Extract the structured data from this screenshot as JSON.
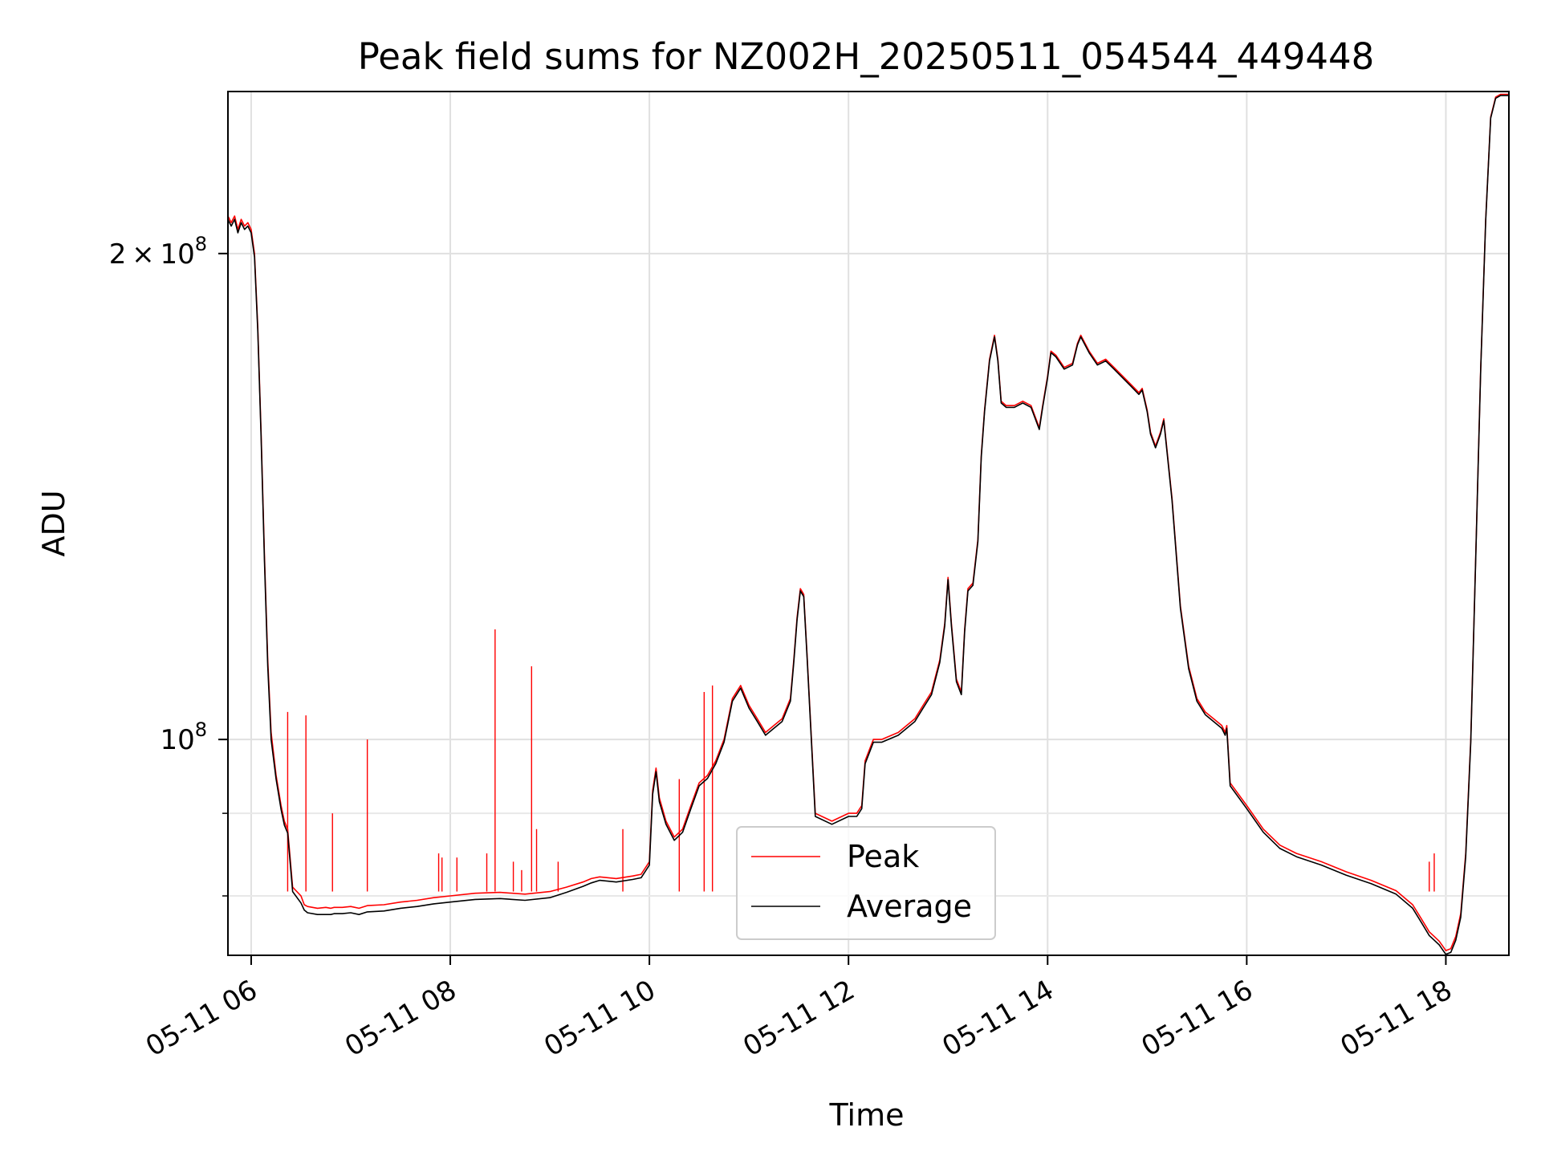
{
  "chart_data": {
    "type": "line",
    "title": "Peak field sums for NZ002H_20250511_054544_449448",
    "xlabel": "Time",
    "ylabel": "ADU",
    "y_scale": "log",
    "xlim": [
      "2025-05-11 05:46",
      "2025-05-11 18:38"
    ],
    "ylim": [
      73500000,
      252000000
    ],
    "grid": true,
    "legend_position": "bottom-center",
    "x_ticks": [
      {
        "value": "2025-05-11 06:00",
        "label": "05-11 06"
      },
      {
        "value": "2025-05-11 08:00",
        "label": "05-11 08"
      },
      {
        "value": "2025-05-11 10:00",
        "label": "05-11 10"
      },
      {
        "value": "2025-05-11 12:00",
        "label": "05-11 12"
      },
      {
        "value": "2025-05-11 14:00",
        "label": "05-11 14"
      },
      {
        "value": "2025-05-11 16:00",
        "label": "05-11 16"
      },
      {
        "value": "2025-05-11 18:00",
        "label": "05-11 18"
      }
    ],
    "y_ticks": [
      {
        "value": 200000000,
        "mantissa": "2",
        "times": "×",
        "base": "10",
        "exp": "8"
      },
      {
        "value": 100000000,
        "mantissa": "",
        "times": "",
        "base": "10",
        "exp": "8"
      }
    ],
    "y_minor_ticks": [
      90000000,
      80000000
    ],
    "series": [
      {
        "name": "Peak",
        "color": "#ff0000",
        "x": [
          "2025-05-11 05:46",
          "2025-05-11 05:48",
          "2025-05-11 05:50",
          "2025-05-11 05:52",
          "2025-05-11 05:54",
          "2025-05-11 05:56",
          "2025-05-11 05:58",
          "2025-05-11 06:00",
          "2025-05-11 06:02",
          "2025-05-11 06:04",
          "2025-05-11 06:06",
          "2025-05-11 06:08",
          "2025-05-11 06:10",
          "2025-05-11 06:12",
          "2025-05-11 06:15",
          "2025-05-11 06:18",
          "2025-05-11 06:20",
          "2025-05-11 06:22",
          "2025-05-11 06:25",
          "2025-05-11 06:30",
          "2025-05-11 06:32",
          "2025-05-11 06:34",
          "2025-05-11 06:40",
          "2025-05-11 06:45",
          "2025-05-11 06:48",
          "2025-05-11 06:50",
          "2025-05-11 06:55",
          "2025-05-11 07:00",
          "2025-05-11 07:05",
          "2025-05-11 07:10",
          "2025-05-11 07:20",
          "2025-05-11 07:30",
          "2025-05-11 07:40",
          "2025-05-11 07:50",
          "2025-05-11 08:00",
          "2025-05-11 08:15",
          "2025-05-11 08:30",
          "2025-05-11 08:45",
          "2025-05-11 09:00",
          "2025-05-11 09:10",
          "2025-05-11 09:20",
          "2025-05-11 09:25",
          "2025-05-11 09:30",
          "2025-05-11 09:40",
          "2025-05-11 09:50",
          "2025-05-11 09:55",
          "2025-05-11 10:00",
          "2025-05-11 10:02",
          "2025-05-11 10:04",
          "2025-05-11 10:06",
          "2025-05-11 10:10",
          "2025-05-11 10:15",
          "2025-05-11 10:20",
          "2025-05-11 10:25",
          "2025-05-11 10:30",
          "2025-05-11 10:35",
          "2025-05-11 10:40",
          "2025-05-11 10:45",
          "2025-05-11 10:50",
          "2025-05-11 10:55",
          "2025-05-11 11:00",
          "2025-05-11 11:05",
          "2025-05-11 11:10",
          "2025-05-11 11:15",
          "2025-05-11 11:20",
          "2025-05-11 11:25",
          "2025-05-11 11:27",
          "2025-05-11 11:29",
          "2025-05-11 11:31",
          "2025-05-11 11:33",
          "2025-05-11 11:35",
          "2025-05-11 11:40",
          "2025-05-11 11:50",
          "2025-05-11 12:00",
          "2025-05-11 12:05",
          "2025-05-11 12:08",
          "2025-05-11 12:10",
          "2025-05-11 12:15",
          "2025-05-11 12:20",
          "2025-05-11 12:30",
          "2025-05-11 12:40",
          "2025-05-11 12:45",
          "2025-05-11 12:50",
          "2025-05-11 12:55",
          "2025-05-11 12:58",
          "2025-05-11 13:00",
          "2025-05-11 13:02",
          "2025-05-11 13:05",
          "2025-05-11 13:08",
          "2025-05-11 13:10",
          "2025-05-11 13:12",
          "2025-05-11 13:15",
          "2025-05-11 13:18",
          "2025-05-11 13:20",
          "2025-05-11 13:22",
          "2025-05-11 13:25",
          "2025-05-11 13:28",
          "2025-05-11 13:30",
          "2025-05-11 13:32",
          "2025-05-11 13:35",
          "2025-05-11 13:40",
          "2025-05-11 13:45",
          "2025-05-11 13:50",
          "2025-05-11 13:55",
          "2025-05-11 13:57",
          "2025-05-11 14:00",
          "2025-05-11 14:02",
          "2025-05-11 14:05",
          "2025-05-11 14:10",
          "2025-05-11 14:15",
          "2025-05-11 14:18",
          "2025-05-11 14:20",
          "2025-05-11 14:25",
          "2025-05-11 14:30",
          "2025-05-11 14:35",
          "2025-05-11 14:40",
          "2025-05-11 14:45",
          "2025-05-11 14:50",
          "2025-05-11 14:55",
          "2025-05-11 14:57",
          "2025-05-11 15:00",
          "2025-05-11 15:02",
          "2025-05-11 15:05",
          "2025-05-11 15:08",
          "2025-05-11 15:10",
          "2025-05-11 15:15",
          "2025-05-11 15:20",
          "2025-05-11 15:25",
          "2025-05-11 15:30",
          "2025-05-11 15:35",
          "2025-05-11 15:40",
          "2025-05-11 15:45",
          "2025-05-11 15:47",
          "2025-05-11 15:48",
          "2025-05-11 15:50",
          "2025-05-11 16:00",
          "2025-05-11 16:10",
          "2025-05-11 16:20",
          "2025-05-11 16:30",
          "2025-05-11 16:45",
          "2025-05-11 17:00",
          "2025-05-11 17:15",
          "2025-05-11 17:30",
          "2025-05-11 17:40",
          "2025-05-11 17:45",
          "2025-05-11 17:50",
          "2025-05-11 17:53",
          "2025-05-11 17:56",
          "2025-05-11 17:58",
          "2025-05-11 18:00",
          "2025-05-11 18:03",
          "2025-05-11 18:06",
          "2025-05-11 18:09",
          "2025-05-11 18:12",
          "2025-05-11 18:15",
          "2025-05-11 18:18",
          "2025-05-11 18:21",
          "2025-05-11 18:24",
          "2025-05-11 18:27",
          "2025-05-11 18:30",
          "2025-05-11 18:33",
          "2025-05-11 18:38"
        ],
        "values": [
          211000000,
          209000000,
          211000000,
          207000000,
          210000000,
          208000000,
          209000000,
          207000000,
          200000000,
          180000000,
          155000000,
          130000000,
          112000000,
          101000000,
          95000000,
          91000000,
          89000000,
          88000000,
          81000000,
          80000000,
          79000000,
          78800000,
          78600000,
          78700000,
          78600000,
          78700000,
          78700000,
          78800000,
          78600000,
          78900000,
          79000000,
          79300000,
          79500000,
          79800000,
          80000000,
          80300000,
          80400000,
          80200000,
          80500000,
          81000000,
          81600000,
          82000000,
          82200000,
          82000000,
          82300000,
          82500000,
          84000000,
          93000000,
          96000000,
          92000000,
          89000000,
          87000000,
          88000000,
          91000000,
          94000000,
          95000000,
          97000000,
          100000000,
          106000000,
          108000000,
          105000000,
          103000000,
          101000000,
          102000000,
          103000000,
          106000000,
          112000000,
          119000000,
          124000000,
          123000000,
          113000000,
          90000000,
          89000000,
          90000000,
          90000000,
          91000000,
          97000000,
          100000000,
          100000000,
          101000000,
          103000000,
          105000000,
          107000000,
          112000000,
          118000000,
          126000000,
          118000000,
          109000000,
          107000000,
          117000000,
          124000000,
          125000000,
          133000000,
          150000000,
          160000000,
          172000000,
          178000000,
          172000000,
          162000000,
          161000000,
          161000000,
          162000000,
          161000000,
          156000000,
          161000000,
          168000000,
          174000000,
          173000000,
          170000000,
          171000000,
          176000000,
          178000000,
          174000000,
          171000000,
          172000000,
          170000000,
          168000000,
          166000000,
          164000000,
          165000000,
          160000000,
          155000000,
          152000000,
          155000000,
          158000000,
          141000000,
          121000000,
          111000000,
          106000000,
          104000000,
          103000000,
          102000000,
          101000000,
          102000000,
          94000000,
          91000000,
          88000000,
          86000000,
          85000000,
          84000000,
          82800000,
          81800000,
          80600000,
          79000000,
          77500000,
          76000000,
          75500000,
          75000000,
          74500000,
          74000000,
          74200000,
          75500000,
          78000000,
          85000000,
          100000000,
          130000000,
          170000000,
          210000000,
          243000000,
          250000000,
          251000000,
          251000000
        ],
        "spikes": [
          {
            "x": "2025-05-11 06:22",
            "value": 104000000
          },
          {
            "x": "2025-05-11 06:33",
            "value": 103500000
          },
          {
            "x": "2025-05-11 06:49",
            "value": 90000000
          },
          {
            "x": "2025-05-11 07:10",
            "value": 100000000
          },
          {
            "x": "2025-05-11 07:53",
            "value": 85000000
          },
          {
            "x": "2025-05-11 07:55",
            "value": 84500000
          },
          {
            "x": "2025-05-11 08:04",
            "value": 84500000
          },
          {
            "x": "2025-05-11 08:22",
            "value": 85000000
          },
          {
            "x": "2025-05-11 08:27",
            "value": 117000000
          },
          {
            "x": "2025-05-11 08:38",
            "value": 84000000
          },
          {
            "x": "2025-05-11 08:43",
            "value": 83000000
          },
          {
            "x": "2025-05-11 08:49",
            "value": 111000000
          },
          {
            "x": "2025-05-11 08:52",
            "value": 88000000
          },
          {
            "x": "2025-05-11 09:05",
            "value": 84000000
          },
          {
            "x": "2025-05-11 09:44",
            "value": 88000000
          },
          {
            "x": "2025-05-11 10:18",
            "value": 94500000
          },
          {
            "x": "2025-05-11 10:33",
            "value": 107000000
          },
          {
            "x": "2025-05-11 10:38",
            "value": 108000000
          },
          {
            "x": "2025-05-11 17:50",
            "value": 84000000
          },
          {
            "x": "2025-05-11 17:53",
            "value": 85000000
          }
        ]
      },
      {
        "name": "Average",
        "color": "#000000",
        "x": [
          "2025-05-11 05:46",
          "2025-05-11 05:48",
          "2025-05-11 05:50",
          "2025-05-11 05:52",
          "2025-05-11 05:54",
          "2025-05-11 05:56",
          "2025-05-11 05:58",
          "2025-05-11 06:00",
          "2025-05-11 06:02",
          "2025-05-11 06:04",
          "2025-05-11 06:06",
          "2025-05-11 06:08",
          "2025-05-11 06:10",
          "2025-05-11 06:12",
          "2025-05-11 06:15",
          "2025-05-11 06:18",
          "2025-05-11 06:20",
          "2025-05-11 06:22",
          "2025-05-11 06:25",
          "2025-05-11 06:30",
          "2025-05-11 06:32",
          "2025-05-11 06:34",
          "2025-05-11 06:40",
          "2025-05-11 06:45",
          "2025-05-11 06:48",
          "2025-05-11 06:50",
          "2025-05-11 06:55",
          "2025-05-11 07:00",
          "2025-05-11 07:05",
          "2025-05-11 07:10",
          "2025-05-11 07:20",
          "2025-05-11 07:30",
          "2025-05-11 07:40",
          "2025-05-11 07:50",
          "2025-05-11 08:00",
          "2025-05-11 08:15",
          "2025-05-11 08:30",
          "2025-05-11 08:45",
          "2025-05-11 09:00",
          "2025-05-11 09:10",
          "2025-05-11 09:20",
          "2025-05-11 09:25",
          "2025-05-11 09:30",
          "2025-05-11 09:40",
          "2025-05-11 09:50",
          "2025-05-11 09:55",
          "2025-05-11 10:00",
          "2025-05-11 10:02",
          "2025-05-11 10:04",
          "2025-05-11 10:06",
          "2025-05-11 10:10",
          "2025-05-11 10:15",
          "2025-05-11 10:20",
          "2025-05-11 10:25",
          "2025-05-11 10:30",
          "2025-05-11 10:35",
          "2025-05-11 10:40",
          "2025-05-11 10:45",
          "2025-05-11 10:50",
          "2025-05-11 10:55",
          "2025-05-11 11:00",
          "2025-05-11 11:05",
          "2025-05-11 11:10",
          "2025-05-11 11:15",
          "2025-05-11 11:20",
          "2025-05-11 11:25",
          "2025-05-11 11:27",
          "2025-05-11 11:29",
          "2025-05-11 11:31",
          "2025-05-11 11:33",
          "2025-05-11 11:35",
          "2025-05-11 11:40",
          "2025-05-11 11:50",
          "2025-05-11 12:00",
          "2025-05-11 12:05",
          "2025-05-11 12:08",
          "2025-05-11 12:10",
          "2025-05-11 12:15",
          "2025-05-11 12:20",
          "2025-05-11 12:30",
          "2025-05-11 12:40",
          "2025-05-11 12:45",
          "2025-05-11 12:50",
          "2025-05-11 12:55",
          "2025-05-11 12:58",
          "2025-05-11 13:00",
          "2025-05-11 13:02",
          "2025-05-11 13:05",
          "2025-05-11 13:08",
          "2025-05-11 13:10",
          "2025-05-11 13:12",
          "2025-05-11 13:15",
          "2025-05-11 13:18",
          "2025-05-11 13:20",
          "2025-05-11 13:22",
          "2025-05-11 13:25",
          "2025-05-11 13:28",
          "2025-05-11 13:30",
          "2025-05-11 13:32",
          "2025-05-11 13:35",
          "2025-05-11 13:40",
          "2025-05-11 13:45",
          "2025-05-11 13:50",
          "2025-05-11 13:55",
          "2025-05-11 13:57",
          "2025-05-11 14:00",
          "2025-05-11 14:02",
          "2025-05-11 14:05",
          "2025-05-11 14:10",
          "2025-05-11 14:15",
          "2025-05-11 14:18",
          "2025-05-11 14:20",
          "2025-05-11 14:25",
          "2025-05-11 14:30",
          "2025-05-11 14:35",
          "2025-05-11 14:40",
          "2025-05-11 14:45",
          "2025-05-11 14:50",
          "2025-05-11 14:55",
          "2025-05-11 14:57",
          "2025-05-11 15:00",
          "2025-05-11 15:02",
          "2025-05-11 15:05",
          "2025-05-11 15:08",
          "2025-05-11 15:10",
          "2025-05-11 15:15",
          "2025-05-11 15:20",
          "2025-05-11 15:25",
          "2025-05-11 15:30",
          "2025-05-11 15:35",
          "2025-05-11 15:40",
          "2025-05-11 15:45",
          "2025-05-11 15:47",
          "2025-05-11 15:48",
          "2025-05-11 15:50",
          "2025-05-11 16:00",
          "2025-05-11 16:10",
          "2025-05-11 16:20",
          "2025-05-11 16:30",
          "2025-05-11 16:45",
          "2025-05-11 17:00",
          "2025-05-11 17:15",
          "2025-05-11 17:30",
          "2025-05-11 17:40",
          "2025-05-11 17:45",
          "2025-05-11 17:50",
          "2025-05-11 17:53",
          "2025-05-11 17:56",
          "2025-05-11 17:58",
          "2025-05-11 18:00",
          "2025-05-11 18:03",
          "2025-05-11 18:06",
          "2025-05-11 18:09",
          "2025-05-11 18:12",
          "2025-05-11 18:15",
          "2025-05-11 18:18",
          "2025-05-11 18:21",
          "2025-05-11 18:24",
          "2025-05-11 18:27",
          "2025-05-11 18:30",
          "2025-05-11 18:33",
          "2025-05-11 18:38"
        ],
        "values": [
          210000000,
          208000000,
          210000000,
          206000000,
          209000000,
          207000000,
          208000000,
          206000000,
          199000000,
          179000000,
          154000000,
          129000000,
          111000000,
          100000000,
          94500000,
          90500000,
          88500000,
          87500000,
          80500000,
          79200000,
          78400000,
          78100000,
          77900000,
          77900000,
          77900000,
          78000000,
          78000000,
          78100000,
          77900000,
          78200000,
          78300000,
          78600000,
          78800000,
          79100000,
          79300000,
          79600000,
          79700000,
          79500000,
          79800000,
          80400000,
          81100000,
          81500000,
          81800000,
          81600000,
          81900000,
          82100000,
          83600000,
          92500000,
          95500000,
          91500000,
          88600000,
          86600000,
          87600000,
          90600000,
          93600000,
          94600000,
          96600000,
          99600000,
          105600000,
          107600000,
          104600000,
          102600000,
          100600000,
          101600000,
          102600000,
          105600000,
          111600000,
          118600000,
          123600000,
          122600000,
          112600000,
          89600000,
          88600000,
          89600000,
          89600000,
          90600000,
          96600000,
          99600000,
          99600000,
          100600000,
          102600000,
          104600000,
          106600000,
          111600000,
          117600000,
          125600000,
          117600000,
          108600000,
          106600000,
          116600000,
          123600000,
          124600000,
          132600000,
          149600000,
          159600000,
          171600000,
          177600000,
          171600000,
          161600000,
          160600000,
          160600000,
          161600000,
          160600000,
          155600000,
          160600000,
          167600000,
          173600000,
          172600000,
          169600000,
          170600000,
          175600000,
          177600000,
          173600000,
          170600000,
          171600000,
          169600000,
          167600000,
          165600000,
          163600000,
          164600000,
          159600000,
          154600000,
          151600000,
          154600000,
          157600000,
          140600000,
          120600000,
          110600000,
          105600000,
          103600000,
          102600000,
          101600000,
          100600000,
          101600000,
          93600000,
          90600000,
          87600000,
          85600000,
          84600000,
          83600000,
          82400000,
          81400000,
          80200000,
          78600000,
          77100000,
          75600000,
          75100000,
          74600000,
          74100000,
          73600000,
          73800000,
          75100000,
          77600000,
          84600000,
          99600000,
          129600000,
          169600000,
          209600000,
          242600000,
          249600000,
          250600000,
          250600000
        ]
      }
    ]
  }
}
